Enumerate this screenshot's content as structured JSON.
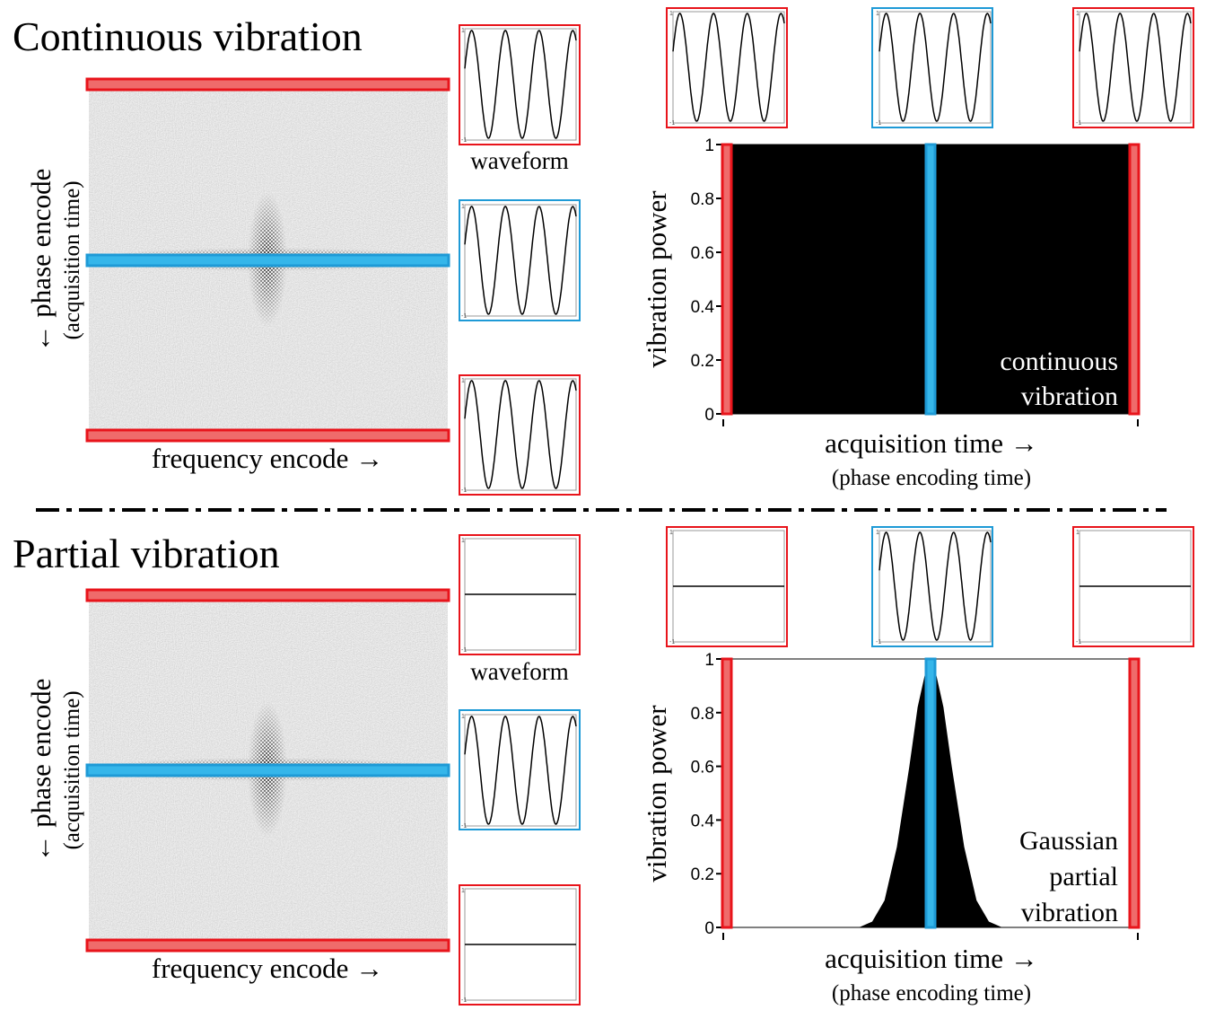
{
  "top": {
    "title": "Continuous vibration",
    "phase_label": "← phase encode",
    "phase_sub": "(acquisition time)",
    "freq_label": "frequency encode →",
    "waveform_label": "waveform",
    "waveforms": [
      "sine",
      "sine",
      "sine"
    ],
    "strip_waveforms": [
      "sine",
      "sine",
      "sine"
    ],
    "chart_ylabel": "vibration power",
    "chart_xlabel": "acquisition time →",
    "chart_xsub": "(phase encoding time)",
    "annotation": [
      "continuous",
      "vibration"
    ]
  },
  "bottom": {
    "title": "Partial vibration",
    "phase_label": "← phase encode",
    "phase_sub": "(acquisition time)",
    "freq_label": "frequency encode →",
    "waveform_label": "waveform",
    "waveforms": [
      "flat",
      "sine",
      "flat"
    ],
    "strip_waveforms": [
      "flat",
      "sine",
      "flat"
    ],
    "chart_ylabel": "vibration power",
    "chart_xlabel": "acquisition time →",
    "chart_xsub": "(phase encoding time)",
    "annotation": [
      "Gaussian",
      "partial",
      "vibration"
    ]
  },
  "mini_axis": {
    "top": "1",
    "bottom": "-1"
  },
  "colors": {
    "red": "#e8141b",
    "red_fill": "#ef6b6b",
    "blue": "#1e9ad6",
    "blue_fill": "#35b6ea",
    "noise": "#c4c4c4"
  },
  "chart_data": [
    {
      "type": "area",
      "x": [
        0,
        1
      ],
      "values": [
        1,
        1
      ],
      "xlabel": "acquisition time →",
      "ylabel": "vibration power",
      "ylim": [
        0,
        1
      ],
      "yticks": [
        0,
        0.2,
        0.4,
        0.6,
        0.8,
        1
      ],
      "ytick_labels": [
        "0",
        "0.2",
        "0.4",
        "0.6",
        "0.8",
        "1"
      ],
      "grid": false
    },
    {
      "type": "area",
      "x": [
        0,
        0.33,
        0.36,
        0.39,
        0.42,
        0.45,
        0.47,
        0.49,
        0.5,
        0.51,
        0.53,
        0.55,
        0.58,
        0.61,
        0.64,
        0.67,
        1
      ],
      "values": [
        0,
        0,
        0.02,
        0.1,
        0.3,
        0.6,
        0.82,
        0.96,
        1,
        0.96,
        0.82,
        0.6,
        0.3,
        0.1,
        0.02,
        0,
        0
      ],
      "xlabel": "acquisition time →",
      "ylabel": "vibration power",
      "ylim": [
        0,
        1
      ],
      "yticks": [
        0,
        0.2,
        0.4,
        0.6,
        0.8,
        1
      ],
      "ytick_labels": [
        "0",
        "0.2",
        "0.4",
        "0.6",
        "0.8",
        "1"
      ],
      "grid": false
    }
  ]
}
